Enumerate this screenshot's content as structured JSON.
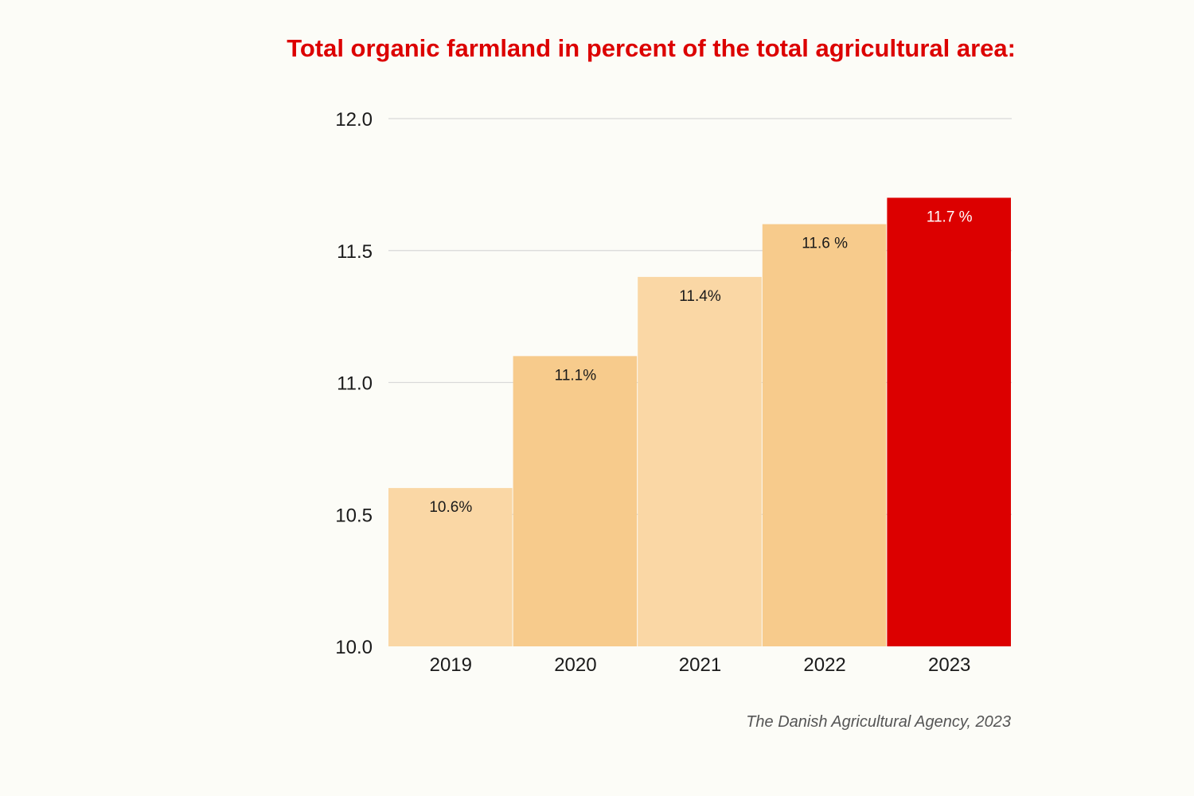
{
  "chart_data": {
    "type": "bar",
    "title": "Total organic farmland in percent of the total agricultural area:",
    "categories": [
      "2019",
      "2020",
      "2021",
      "2022",
      "2023"
    ],
    "values": [
      10.6,
      11.1,
      11.4,
      11.6,
      11.7
    ],
    "data_labels": [
      "10.6%",
      "11.1%",
      "11.4%",
      "11.6 %",
      "11.7 %"
    ],
    "bar_colors": [
      "#fad7a5",
      "#f7cb8c",
      "#fad7a5",
      "#f7cb8c",
      "#dc0000"
    ],
    "label_colors": [
      "#1a1a1a",
      "#1a1a1a",
      "#1a1a1a",
      "#1a1a1a",
      "#ffffff"
    ],
    "ylim": [
      10.0,
      12.0
    ],
    "yticks": [
      10.0,
      10.5,
      11.0,
      11.5,
      12.0
    ],
    "ytick_labels": [
      "10.0",
      "10.5",
      "11.0",
      "11.5",
      "12.0"
    ],
    "grid": true,
    "xlabel": "",
    "ylabel": "",
    "source": "The Danish Agricultural Agency, 2023",
    "colors": {
      "title": "#dc0000",
      "highlight": "#dc0000",
      "grid": "#d9d9d9",
      "background": "#fcfcf7"
    }
  }
}
